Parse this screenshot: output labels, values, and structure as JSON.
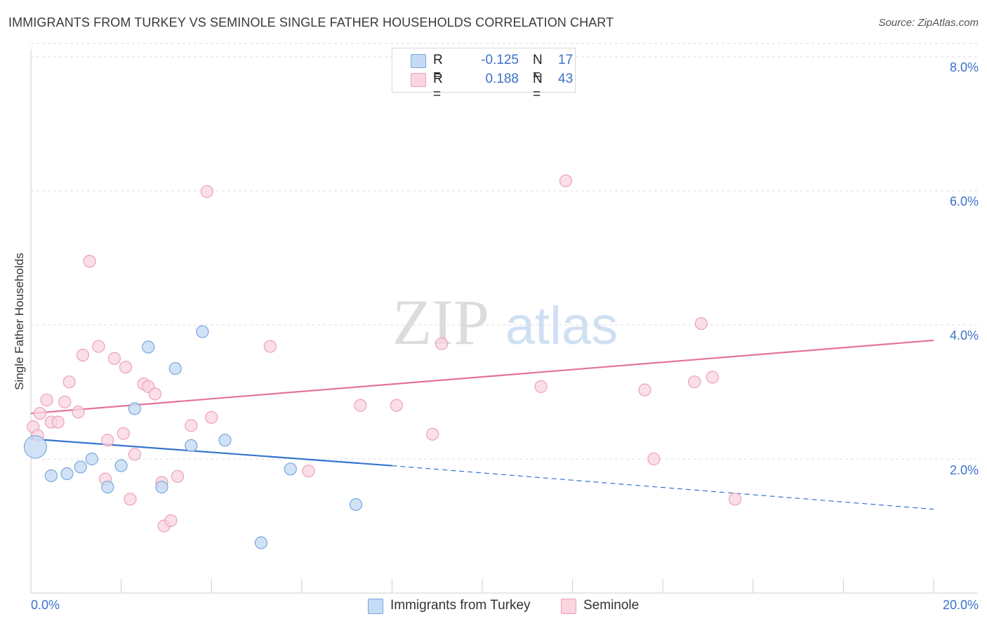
{
  "title": "IMMIGRANTS FROM TURKEY VS SEMINOLE SINGLE FATHER HOUSEHOLDS CORRELATION CHART",
  "source": "Source: ZipAtlas.com",
  "watermark": {
    "zip": "ZIP",
    "atlas": "atlas"
  },
  "legend": {
    "rows": [
      {
        "r_label": "R =",
        "r_value": "-0.125",
        "n_label": "N =",
        "n_value": "17",
        "color": "#a9c8f0"
      },
      {
        "r_label": "R =",
        "r_value": "0.188",
        "n_label": "N =",
        "n_value": "43",
        "color": "#f5b8cb"
      }
    ]
  },
  "colors": {
    "blue_fill": "#c5dbf5",
    "blue_stroke": "#7aa6dc",
    "blue_line": "#3474cf",
    "pink_fill": "#fad4df",
    "pink_stroke": "#eca0b8",
    "pink_line": "#e5729a",
    "axis_label": "#3d72c8",
    "grid": "#dcdcdc"
  },
  "chart_data": {
    "type": "scatter",
    "title": "IMMIGRANTS FROM TURKEY VS SEMINOLE SINGLE FATHER HOUSEHOLDS CORRELATION CHART",
    "xlabel": "",
    "ylabel": "Single Father Households",
    "xlim": [
      0,
      20
    ],
    "ylim": [
      0,
      8.2
    ],
    "x_unit": "%",
    "y_unit": "%",
    "x_tick_labels": [
      "0.0%",
      "20.0%"
    ],
    "y_tick_labels": [
      "2.0%",
      "4.0%",
      "6.0%",
      "8.0%"
    ],
    "y_ticks": [
      2,
      4,
      6,
      8
    ],
    "grid": "horizontal dashed",
    "legend_position": "bottom",
    "series": [
      {
        "name": "Immigrants from Turkey",
        "color": "#3474cf",
        "points": [
          [
            0.1,
            2.18
          ],
          [
            0.45,
            1.75
          ],
          [
            0.8,
            1.78
          ],
          [
            1.1,
            1.88
          ],
          [
            1.35,
            2.0
          ],
          [
            1.7,
            1.58
          ],
          [
            2.0,
            1.9
          ],
          [
            2.3,
            2.75
          ],
          [
            2.6,
            3.67
          ],
          [
            2.9,
            1.58
          ],
          [
            3.2,
            3.35
          ],
          [
            3.55,
            2.2
          ],
          [
            3.8,
            3.9
          ],
          [
            4.3,
            2.28
          ],
          [
            5.1,
            0.75
          ],
          [
            5.75,
            1.85
          ],
          [
            7.2,
            1.32
          ]
        ],
        "trend": {
          "x": [
            0,
            8
          ],
          "y": [
            2.3,
            1.9
          ],
          "dashed_extension": {
            "x": [
              8,
              20
            ],
            "y": [
              1.9,
              1.25
            ]
          }
        }
      },
      {
        "name": "Seminole",
        "color": "#e5729a",
        "points": [
          [
            0.05,
            2.48
          ],
          [
            0.15,
            2.35
          ],
          [
            0.2,
            2.68
          ],
          [
            0.35,
            2.88
          ],
          [
            0.45,
            2.55
          ],
          [
            0.6,
            2.55
          ],
          [
            0.75,
            2.85
          ],
          [
            0.85,
            3.15
          ],
          [
            1.05,
            2.7
          ],
          [
            1.15,
            3.55
          ],
          [
            1.3,
            4.95
          ],
          [
            1.5,
            3.68
          ],
          [
            1.65,
            1.7
          ],
          [
            1.7,
            2.28
          ],
          [
            1.85,
            3.5
          ],
          [
            2.05,
            2.38
          ],
          [
            2.1,
            3.37
          ],
          [
            2.2,
            1.4
          ],
          [
            2.3,
            2.07
          ],
          [
            2.5,
            3.12
          ],
          [
            2.6,
            3.08
          ],
          [
            2.75,
            2.97
          ],
          [
            2.9,
            1.65
          ],
          [
            2.95,
            1.0
          ],
          [
            3.1,
            1.08
          ],
          [
            3.25,
            1.74
          ],
          [
            3.55,
            2.5
          ],
          [
            3.9,
            5.99
          ],
          [
            4.0,
            2.62
          ],
          [
            5.3,
            3.68
          ],
          [
            6.15,
            1.82
          ],
          [
            7.3,
            2.8
          ],
          [
            8.1,
            2.8
          ],
          [
            8.9,
            2.37
          ],
          [
            9.1,
            3.72
          ],
          [
            11.3,
            3.08
          ],
          [
            11.85,
            6.15
          ],
          [
            13.6,
            3.03
          ],
          [
            13.8,
            2.0
          ],
          [
            14.7,
            3.15
          ],
          [
            14.85,
            4.02
          ],
          [
            15.1,
            3.22
          ],
          [
            15.6,
            1.4
          ]
        ],
        "trend": {
          "x": [
            0,
            20
          ],
          "y": [
            2.68,
            3.77
          ]
        }
      }
    ]
  },
  "bottom_legend": [
    {
      "label": "Immigrants from Turkey",
      "color": "#a9c8f0"
    },
    {
      "label": "Seminole",
      "color": "#f5b8cb"
    }
  ]
}
